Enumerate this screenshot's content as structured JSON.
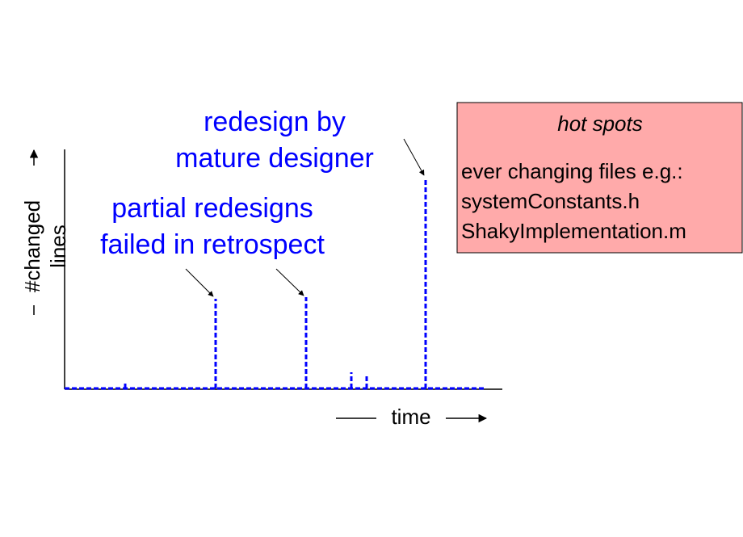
{
  "y_axis": {
    "label_lines": [
      "#changed",
      "lines"
    ]
  },
  "x_axis": {
    "label": "time"
  },
  "annotations": {
    "redesign": [
      "redesign by",
      "mature designer"
    ],
    "partial": [
      "partial redesigns",
      "failed in retrospect"
    ]
  },
  "hot_spots": {
    "title": "hot spots",
    "lines": [
      "ever changing files e.g.:",
      "systemConstants.h",
      "ShakyImplementation.m"
    ]
  }
}
